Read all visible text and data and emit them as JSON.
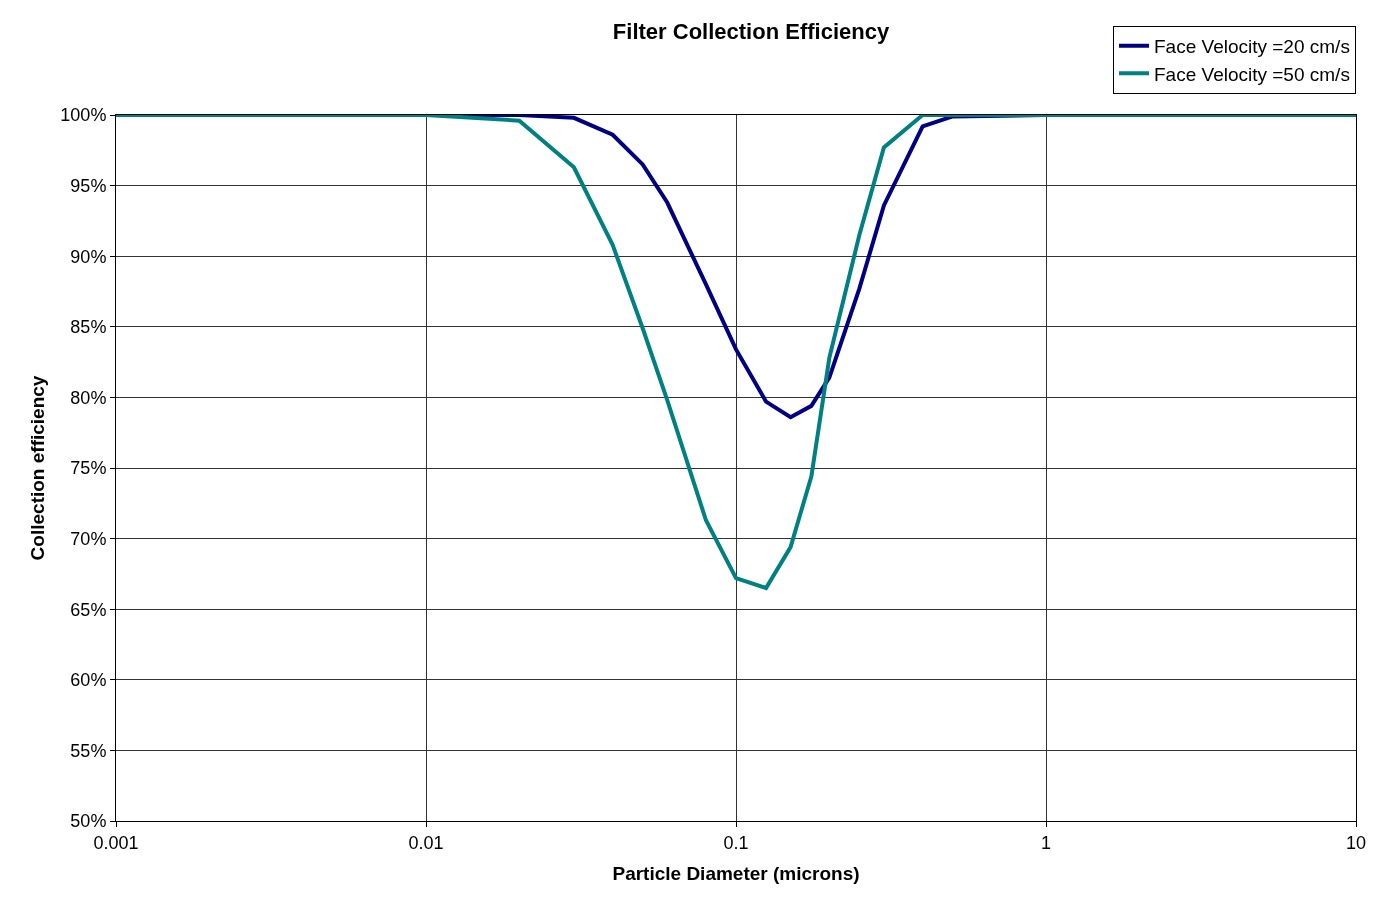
{
  "chart_data": {
    "type": "line",
    "title": "Filter Collection Efficiency",
    "xlabel": "Particle Diameter (microns)",
    "ylabel": "Collection efficiency",
    "log": "x",
    "grid": true,
    "legend": "top right",
    "marker": "none",
    "line_style": "solid",
    "xlim": [
      0.001,
      10
    ],
    "xticks": [
      0.001,
      0.01,
      0.1,
      1,
      10
    ],
    "ylim": [
      50,
      100
    ],
    "yticks": [
      {
        "value": 50,
        "label": "50%"
      },
      {
        "value": 55,
        "label": "55%"
      },
      {
        "value": 60,
        "label": "60%"
      },
      {
        "value": 65,
        "label": "65%"
      },
      {
        "value": 70,
        "label": "70%"
      },
      {
        "value": 75,
        "label": "75%"
      },
      {
        "value": 80,
        "label": "80%"
      },
      {
        "value": 85,
        "label": "85%"
      },
      {
        "value": 90,
        "label": "90%"
      },
      {
        "value": 95,
        "label": "95%"
      },
      {
        "value": 100,
        "label": "100%"
      }
    ],
    "x": [
      0.001,
      0.01,
      0.02,
      0.03,
      0.04,
      0.05,
      0.06,
      0.08,
      0.1,
      0.125,
      0.15,
      0.175,
      0.2,
      0.25,
      0.3,
      0.4,
      0.5,
      1,
      10
    ],
    "series": [
      {
        "name": "Face Velocity =20 cm/s",
        "color": "#000080",
        "values": [
          100,
          100,
          100,
          99.8,
          98.6,
          96.5,
          93.8,
          88,
          83.4,
          79.7,
          78.6,
          79.4,
          81.4,
          87.7,
          93.6,
          99.2,
          99.9,
          100,
          null
        ]
      },
      {
        "name": "Face Velocity =50 cm/s",
        "color": "#008080",
        "values": [
          100,
          100,
          99.6,
          96.3,
          90.8,
          84.9,
          79.8,
          71.3,
          67.2,
          66.5,
          69.4,
          74.4,
          82.8,
          91.5,
          97.7,
          100,
          100,
          100,
          100
        ]
      }
    ]
  }
}
